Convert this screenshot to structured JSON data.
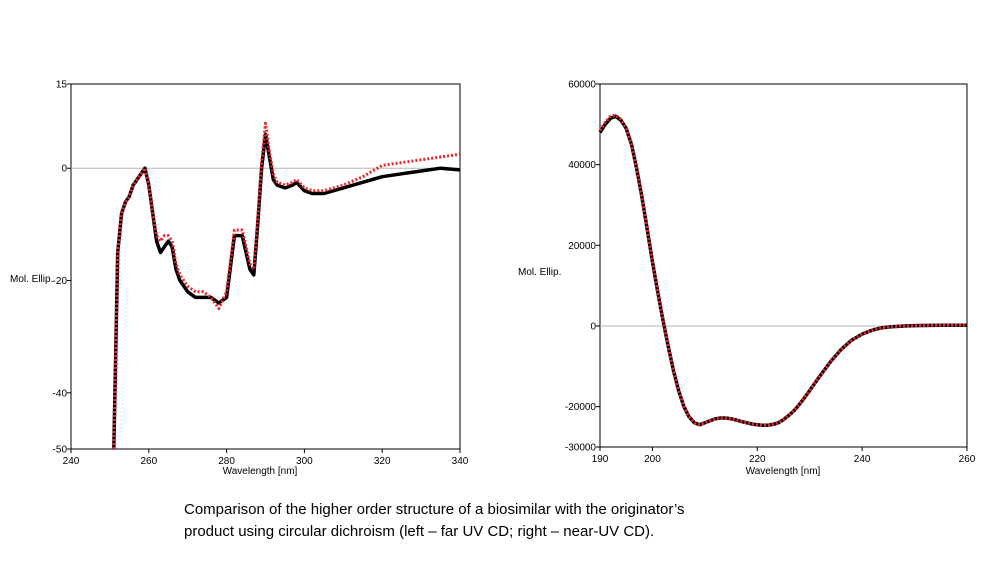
{
  "caption": {
    "line1": "Comparison of the higher order structure of a biosimilar with the originator’s",
    "line2": "product using circular dichroism (left – far UV CD; right – near-UV CD)."
  },
  "colors": {
    "reference": "#000000",
    "biosimilar": "#e8262b",
    "zero_line": "#b5b5b5"
  },
  "chart_data": [
    {
      "type": "line",
      "xlabel": "Wavelength [nm]",
      "ylabel": "Mol. Ellip.",
      "xlim": [
        240,
        340
      ],
      "ylim": [
        -50,
        15
      ],
      "x_ticks": [
        240,
        260,
        280,
        300,
        320,
        340
      ],
      "y_ticks": [
        15,
        0,
        -20,
        -40,
        -50
      ],
      "zero_line": true,
      "series": [
        {
          "color": "#000000",
          "style": "solid",
          "x": [
            251,
            252,
            253,
            254,
            255,
            256,
            257,
            258,
            259,
            260,
            261,
            262,
            263,
            264,
            265,
            266,
            267,
            268,
            270,
            272,
            274,
            276,
            278,
            280,
            282,
            284,
            286,
            287,
            288,
            289,
            290,
            291,
            292,
            293,
            295,
            297,
            298,
            300,
            302,
            305,
            310,
            315,
            320,
            325,
            330,
            335,
            340
          ],
          "y": [
            -50,
            -15,
            -8,
            -6,
            -5,
            -3,
            -2,
            -1,
            0,
            -3,
            -8,
            -13,
            -15,
            -14,
            -13,
            -14,
            -18,
            -20,
            -22,
            -23,
            -23,
            -23,
            -24,
            -23,
            -12,
            -12,
            -18,
            -19,
            -10,
            0,
            6,
            2,
            -2,
            -3,
            -3.5,
            -3,
            -2.5,
            -4,
            -4.5,
            -4.5,
            -3.5,
            -2.5,
            -1.5,
            -1,
            -0.5,
            0,
            -0.3
          ]
        },
        {
          "color": "#e8262b",
          "style": "dotted",
          "x": [
            251,
            252,
            253,
            254,
            255,
            256,
            257,
            258,
            259,
            260,
            261,
            262,
            263,
            264,
            265,
            266,
            267,
            268,
            270,
            272,
            274,
            276,
            278,
            280,
            282,
            284,
            286,
            287,
            288,
            289,
            290,
            291,
            292,
            293,
            295,
            297,
            298,
            300,
            302,
            305,
            310,
            315,
            320,
            325,
            330,
            335,
            340
          ],
          "y": [
            -50,
            -15,
            -8,
            -6,
            -5,
            -3,
            -2,
            -1,
            0,
            -3,
            -8,
            -12,
            -13,
            -12,
            -12,
            -13,
            -17,
            -19,
            -21,
            -22,
            -22,
            -23,
            -25,
            -22,
            -11,
            -11,
            -17,
            -18,
            -9,
            1,
            8,
            3,
            -1,
            -2.5,
            -3,
            -2.5,
            -2,
            -3.5,
            -4,
            -4,
            -3,
            -1.5,
            0.5,
            1,
            1.5,
            2,
            2.5
          ]
        }
      ]
    },
    {
      "type": "line",
      "xlabel": "Wavelength [nm]",
      "ylabel": "Mol. Ellip.",
      "xlim": [
        190,
        260
      ],
      "ylim": [
        -30000,
        60000
      ],
      "x_ticks": [
        190,
        200,
        220,
        240,
        260
      ],
      "y_ticks": [
        60000,
        40000,
        20000,
        0,
        -20000,
        -30000
      ],
      "zero_line": true,
      "series": [
        {
          "color": "#000000",
          "style": "solid",
          "x": [
            190,
            191,
            192,
            193,
            194,
            195,
            196,
            197,
            198,
            199,
            200,
            201,
            202,
            203,
            204,
            205,
            206,
            207,
            208,
            209,
            210,
            211,
            212,
            213,
            214,
            215,
            216,
            217,
            218,
            219,
            220,
            221,
            222,
            223,
            224,
            225,
            226,
            227,
            228,
            229,
            230,
            232,
            234,
            236,
            238,
            240,
            242,
            244,
            246,
            248,
            250,
            255,
            260
          ],
          "y": [
            48000,
            50000,
            51500,
            52000,
            51000,
            49000,
            45000,
            39000,
            32000,
            24000,
            16000,
            8500,
            1500,
            -5000,
            -11000,
            -16000,
            -20000,
            -22500,
            -24000,
            -24500,
            -24000,
            -23500,
            -23000,
            -22800,
            -22800,
            -23000,
            -23300,
            -23700,
            -24000,
            -24300,
            -24500,
            -24600,
            -24600,
            -24400,
            -24000,
            -23200,
            -22200,
            -21000,
            -19500,
            -17800,
            -16000,
            -12300,
            -8800,
            -5800,
            -3500,
            -2000,
            -1000,
            -400,
            -150,
            0,
            100,
            200,
            200
          ]
        },
        {
          "color": "#e8262b",
          "style": "dotted",
          "x": [
            190,
            191,
            192,
            193,
            194,
            195,
            196,
            197,
            198,
            199,
            200,
            201,
            202,
            203,
            204,
            205,
            206,
            207,
            208,
            209,
            210,
            211,
            212,
            213,
            214,
            215,
            216,
            217,
            218,
            219,
            220,
            221,
            222,
            223,
            224,
            225,
            226,
            227,
            228,
            229,
            230,
            232,
            234,
            236,
            238,
            240,
            242,
            244,
            246,
            248,
            250,
            255,
            260
          ],
          "y": [
            48500,
            50500,
            52000,
            52300,
            51200,
            49000,
            45000,
            39000,
            32000,
            24000,
            16000,
            8500,
            1500,
            -5000,
            -11000,
            -16000,
            -20000,
            -22500,
            -24000,
            -24500,
            -24000,
            -23500,
            -23000,
            -22800,
            -22800,
            -23000,
            -23300,
            -23700,
            -24000,
            -24300,
            -24500,
            -24600,
            -24600,
            -24400,
            -24000,
            -23200,
            -22200,
            -21000,
            -19500,
            -17800,
            -16000,
            -12300,
            -8800,
            -5800,
            -3500,
            -2000,
            -1000,
            -400,
            -150,
            0,
            100,
            200,
            200
          ]
        }
      ]
    }
  ]
}
